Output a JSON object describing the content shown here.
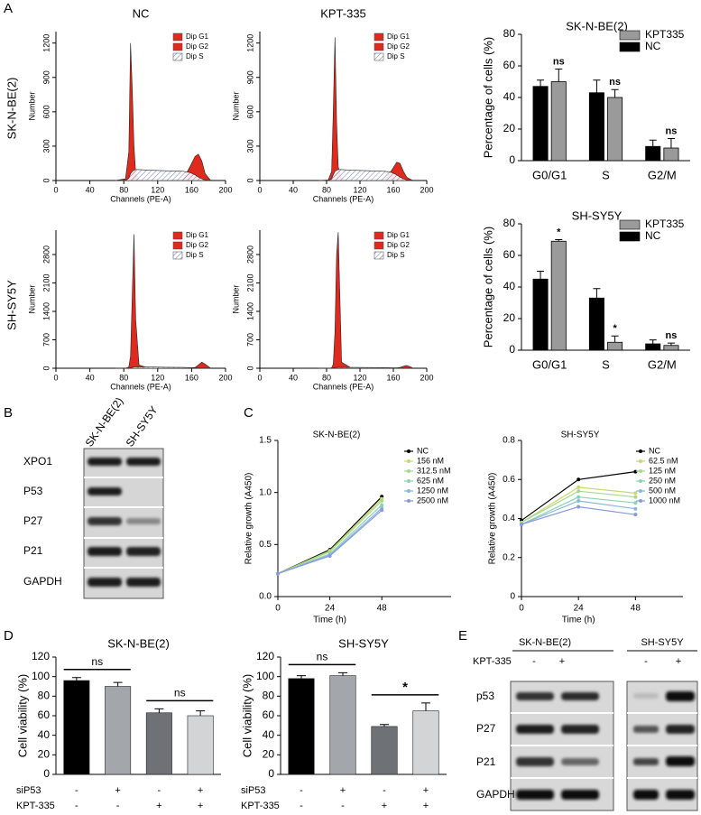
{
  "panel_labels": [
    "A",
    "B",
    "C",
    "D",
    "E"
  ],
  "panel_a_rows": [
    "SK-N-BE(2)",
    "SH-SY5Y"
  ],
  "blot_b": {
    "lanes": [
      "SK-N-BE(2)",
      "SH-SY5Y"
    ],
    "rows": [
      "XPO1",
      "P53",
      "P27",
      "P21",
      "GAPDH"
    ]
  },
  "blot_e": {
    "treatment_label": "KPT-335",
    "groups": [
      "SK-N-BE(2)",
      "SH-SY5Y"
    ],
    "lanes": [
      "-",
      "+",
      "-",
      "+"
    ],
    "rows": [
      "p53",
      "P27",
      "P21",
      "GAPDH"
    ]
  },
  "chart_data": [
    {
      "type": "area",
      "title": "NC",
      "x_label": "Channels (PE-A)",
      "y_label": "Number",
      "x": [
        70,
        82,
        86,
        88,
        90,
        92,
        94,
        98,
        110,
        130,
        150,
        158,
        164,
        168,
        172,
        176,
        182
      ],
      "series": [
        {
          "name": "Dip G1",
          "color": "#e02a1e",
          "values": [
            0,
            15,
            250,
            1200,
            800,
            300,
            60,
            5,
            0,
            0,
            0,
            0,
            0,
            0,
            0,
            0,
            0
          ]
        },
        {
          "name": "Dip G2",
          "color": "#e02a1e",
          "values": [
            0,
            0,
            0,
            0,
            0,
            0,
            0,
            0,
            0,
            0,
            10,
            120,
            210,
            230,
            170,
            60,
            5
          ]
        },
        {
          "name": "Dip S",
          "color": "#6070b0",
          "pattern": "hatch",
          "values": [
            0,
            0,
            20,
            60,
            80,
            90,
            95,
            95,
            90,
            85,
            80,
            70,
            50,
            30,
            15,
            5,
            0
          ]
        }
      ],
      "xlim": [
        0,
        200
      ],
      "xticks": [
        0,
        40,
        80,
        120,
        160,
        200
      ],
      "ylim": [
        0,
        1300
      ],
      "yticks": [
        0,
        300,
        600,
        900,
        1200
      ]
    },
    {
      "type": "area",
      "title": "KPT-335",
      "x_label": "Channels (PE-A)",
      "y_label": "Number",
      "x": [
        70,
        82,
        86,
        88,
        90,
        92,
        94,
        98,
        110,
        130,
        150,
        158,
        164,
        168,
        172,
        176,
        182
      ],
      "series": [
        {
          "name": "Dip G1",
          "color": "#e02a1e",
          "values": [
            0,
            5,
            80,
            600,
            1250,
            500,
            120,
            10,
            0,
            0,
            0,
            0,
            0,
            0,
            0,
            0,
            0
          ]
        },
        {
          "name": "Dip G2",
          "color": "#e02a1e",
          "values": [
            0,
            0,
            0,
            0,
            0,
            0,
            0,
            0,
            0,
            0,
            10,
            90,
            160,
            150,
            80,
            30,
            5
          ]
        },
        {
          "name": "Dip S",
          "color": "#6070b0",
          "pattern": "hatch",
          "values": [
            0,
            0,
            15,
            50,
            80,
            90,
            95,
            95,
            90,
            85,
            80,
            70,
            50,
            30,
            15,
            5,
            0
          ]
        }
      ],
      "xlim": [
        0,
        200
      ],
      "xticks": [
        0,
        40,
        80,
        120,
        160,
        200
      ],
      "ylim": [
        0,
        1300
      ],
      "yticks": [
        0,
        300,
        600,
        900,
        1200
      ]
    },
    {
      "type": "area",
      "x_label": "Channels (PE-A)",
      "y_label": "Number",
      "x": [
        70,
        82,
        86,
        88,
        90,
        92,
        94,
        98,
        110,
        130,
        150,
        158,
        164,
        168,
        172,
        176,
        182
      ],
      "series": [
        {
          "name": "Dip G1",
          "color": "#e02a1e",
          "values": [
            0,
            0,
            30,
            300,
            1800,
            3300,
            1200,
            80,
            0,
            0,
            0,
            0,
            0,
            0,
            0,
            0,
            0
          ]
        },
        {
          "name": "Dip G2",
          "color": "#e02a1e",
          "values": [
            0,
            0,
            0,
            0,
            0,
            0,
            0,
            0,
            0,
            0,
            0,
            0,
            20,
            80,
            150,
            100,
            10
          ]
        },
        {
          "name": "Dip S",
          "color": "#6070b0",
          "pattern": "hatch",
          "values": [
            0,
            0,
            0,
            10,
            20,
            30,
            30,
            30,
            30,
            25,
            20,
            15,
            10,
            5,
            0,
            0,
            0
          ]
        }
      ],
      "xlim": [
        0,
        200
      ],
      "xticks": [
        0,
        40,
        80,
        120,
        160,
        200
      ],
      "ylim": [
        0,
        3400
      ],
      "yticks": [
        0,
        700,
        1400,
        2100,
        2800
      ]
    },
    {
      "type": "area",
      "x_label": "Channels (PE-A)",
      "y_label": "Number",
      "x": [
        70,
        82,
        86,
        88,
        90,
        92,
        94,
        98,
        110,
        130,
        150,
        158,
        164,
        168,
        172,
        176,
        182
      ],
      "series": [
        {
          "name": "Dip G1",
          "color": "#e02a1e",
          "values": [
            0,
            0,
            10,
            100,
            900,
            2800,
            3350,
            150,
            0,
            0,
            0,
            0,
            0,
            0,
            0,
            0,
            0
          ]
        },
        {
          "name": "Dip G2",
          "color": "#e02a1e",
          "values": [
            0,
            0,
            0,
            0,
            0,
            0,
            0,
            0,
            0,
            0,
            0,
            0,
            5,
            20,
            50,
            70,
            20
          ]
        },
        {
          "name": "Dip S",
          "color": "#6070b0",
          "pattern": "hatch",
          "values": [
            0,
            0,
            0,
            5,
            15,
            20,
            20,
            20,
            20,
            18,
            15,
            10,
            8,
            5,
            0,
            0,
            0
          ]
        }
      ],
      "xlim": [
        0,
        200
      ],
      "xticks": [
        0,
        40,
        80,
        120,
        160,
        200
      ],
      "ylim": [
        0,
        3400
      ],
      "yticks": [
        0,
        700,
        1400,
        2100,
        2800
      ]
    },
    {
      "type": "bar",
      "title": "SK-N-BE(2)",
      "y_label": "Percentage of cells (%)",
      "categories": [
        "G0/G1",
        "S",
        "G2/M"
      ],
      "series": [
        {
          "name": "KPT335",
          "color": "#9a9a9a",
          "values": [
            50,
            40,
            8
          ],
          "errors": [
            8,
            5,
            6
          ],
          "annotations": [
            "ns",
            "ns",
            "ns"
          ]
        },
        {
          "name": "NC",
          "color": "#000000",
          "values": [
            47,
            43,
            9
          ],
          "errors": [
            4,
            8,
            4
          ]
        }
      ],
      "ylim": [
        0,
        80
      ],
      "yticks": [
        0,
        20,
        40,
        60,
        80
      ]
    },
    {
      "type": "bar",
      "title": "SH-SY5Y",
      "y_label": "Percentage of cells (%)",
      "categories": [
        "G0/G1",
        "S",
        "G2/M"
      ],
      "series": [
        {
          "name": "KPT335",
          "color": "#9a9a9a",
          "values": [
            69,
            5,
            3
          ],
          "errors": [
            1,
            4,
            1.5
          ],
          "annotations": [
            "*",
            "*",
            "ns"
          ]
        },
        {
          "name": "NC",
          "color": "#000000",
          "values": [
            45,
            33,
            4
          ],
          "errors": [
            5,
            6,
            2.5
          ]
        }
      ],
      "ylim": [
        0,
        80
      ],
      "yticks": [
        0,
        20,
        40,
        60,
        80
      ]
    },
    {
      "type": "line",
      "title": "SK-N-BE(2)",
      "x_label": "Time (h)",
      "y_label": "Relative growth (A450)",
      "x": [
        0,
        24,
        48
      ],
      "series": [
        {
          "name": "NC",
          "color": "#000000",
          "values": [
            0.22,
            0.45,
            0.96
          ]
        },
        {
          "name": "156 nM",
          "color": "#c9d86a",
          "values": [
            0.22,
            0.44,
            0.94
          ]
        },
        {
          "name": "312.5 nM",
          "color": "#a6d88c",
          "values": [
            0.22,
            0.43,
            0.92
          ]
        },
        {
          "name": "625 nM",
          "color": "#8ad2b2",
          "values": [
            0.22,
            0.41,
            0.88
          ]
        },
        {
          "name": "1250 nM",
          "color": "#8ab8dc",
          "values": [
            0.22,
            0.4,
            0.85
          ]
        },
        {
          "name": "2500 nM",
          "color": "#8a98e0",
          "values": [
            0.22,
            0.39,
            0.83
          ]
        }
      ],
      "xlim": [
        0,
        80
      ],
      "xticks": [
        0,
        24,
        48
      ],
      "ylim": [
        0,
        1.5
      ],
      "yticks": [
        {
          "value": 0,
          "label": "0.0"
        },
        0.5,
        {
          "value": 1,
          "label": "1.0"
        },
        1.5
      ]
    },
    {
      "type": "line",
      "title": "SH-SY5Y",
      "x_label": "Time (h)",
      "y_label": "Relative growth (A450)",
      "x": [
        0,
        24,
        48
      ],
      "series": [
        {
          "name": "NC",
          "color": "#000000",
          "values": [
            0.39,
            0.6,
            0.64
          ]
        },
        {
          "name": "62.5 nM",
          "color": "#c9d86a",
          "values": [
            0.38,
            0.56,
            0.53
          ]
        },
        {
          "name": "125 nM",
          "color": "#a6d88c",
          "values": [
            0.38,
            0.54,
            0.51
          ]
        },
        {
          "name": "250 nM",
          "color": "#8ad2b2",
          "values": [
            0.37,
            0.51,
            0.48
          ]
        },
        {
          "name": "500 nM",
          "color": "#8ab8dc",
          "values": [
            0.37,
            0.49,
            0.45
          ]
        },
        {
          "name": "1000 nM",
          "color": "#8a98e0",
          "values": [
            0.37,
            0.46,
            0.42
          ]
        }
      ],
      "xlim": [
        0,
        68
      ],
      "xticks": [
        0,
        24,
        48
      ],
      "ylim": [
        0,
        0.8
      ],
      "yticks": [
        0,
        0.2,
        0.4,
        0.6,
        0.8
      ]
    },
    {
      "type": "bar",
      "title": "SK-N-BE(2)",
      "y_label": "Cell viability (%)",
      "values": [
        96,
        90,
        63,
        60
      ],
      "errors": [
        3,
        4,
        4,
        5
      ],
      "colors": [
        "#000000",
        "#a3a7ab",
        "#6e7276",
        "#d2d4d6"
      ],
      "annotations": [
        "ns",
        "ns"
      ],
      "conditions": [
        {
          "name": "siP53",
          "values": [
            "-",
            "+",
            "-",
            "+"
          ]
        },
        {
          "name": "KPT-335",
          "values": [
            "-",
            "-",
            "+",
            "+"
          ]
        }
      ],
      "ylim": [
        0,
        120
      ],
      "yticks": [
        0,
        20,
        40,
        60,
        80,
        100,
        120
      ]
    },
    {
      "type": "bar",
      "title": "SH-SY5Y",
      "y_label": "Cell viability (%)",
      "values": [
        98,
        101,
        49,
        65
      ],
      "errors": [
        3,
        3,
        2,
        8
      ],
      "colors": [
        "#000000",
        "#a3a7ab",
        "#6e7276",
        "#d2d4d6"
      ],
      "annotations": [
        "ns",
        "*"
      ],
      "conditions": [
        {
          "name": "siP53",
          "values": [
            "-",
            "+",
            "-",
            "+"
          ]
        },
        {
          "name": "KPT-335",
          "values": [
            "-",
            "-",
            "+",
            "+"
          ]
        }
      ],
      "ylim": [
        0,
        120
      ],
      "yticks": [
        0,
        20,
        40,
        60,
        80,
        100,
        120
      ]
    }
  ]
}
